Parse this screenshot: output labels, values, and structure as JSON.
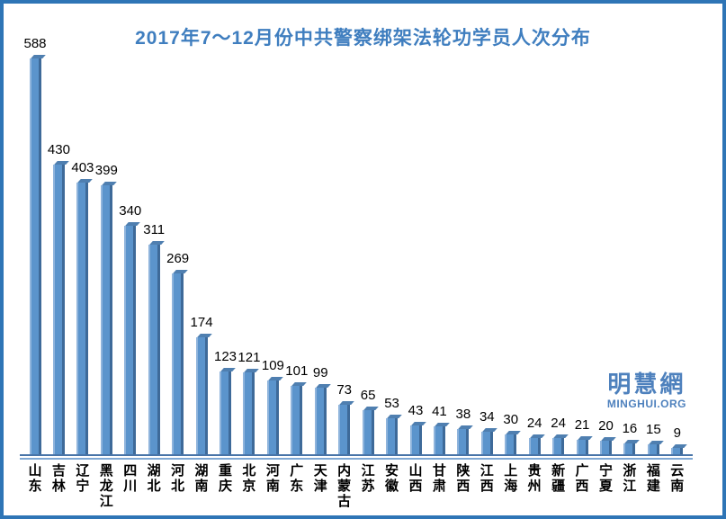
{
  "frame": {
    "border_color": "#2E75B6",
    "background_color": "#FFFFFF"
  },
  "title": {
    "text": "2017年7～12月份中共警察绑架法轮功学员人次分布",
    "color": "#3F7EBF"
  },
  "watermark": {
    "logo_text": "明慧網",
    "site_text": "MINGHUI.ORG",
    "color": "#4E81BD"
  },
  "chart_data": {
    "type": "bar",
    "title": "2017年7～12月份中共警察绑架法轮功学员人次分布",
    "categories": [
      "山东",
      "吉林",
      "辽宁",
      "黑龙江",
      "四川",
      "湖北",
      "河北",
      "湖南",
      "重庆",
      "北京",
      "河南",
      "广东",
      "天津",
      "内蒙古",
      "江苏",
      "安徽",
      "山西",
      "甘肃",
      "陕西",
      "江西",
      "上海",
      "贵州",
      "新疆",
      "广西",
      "宁夏",
      "浙江",
      "福建",
      "云南"
    ],
    "values": [
      588,
      430,
      403,
      399,
      340,
      311,
      269,
      174,
      123,
      121,
      109,
      101,
      99,
      73,
      65,
      53,
      43,
      41,
      38,
      34,
      30,
      24,
      24,
      21,
      20,
      16,
      15,
      9
    ],
    "xlabel": "",
    "ylabel": "",
    "ylim": [
      0,
      620
    ],
    "grid": false,
    "legend": false,
    "data_labels": true,
    "bar_style": "3d",
    "bar_color_main": "#5B94CC",
    "bar_color_highlight": "#8FB4DC",
    "bar_color_shadow": "#3E6A99",
    "bar_color_cap": "#4F7FB0",
    "baseline_color_dark": "#4874A8",
    "baseline_color_light": "#7FA8D4"
  }
}
